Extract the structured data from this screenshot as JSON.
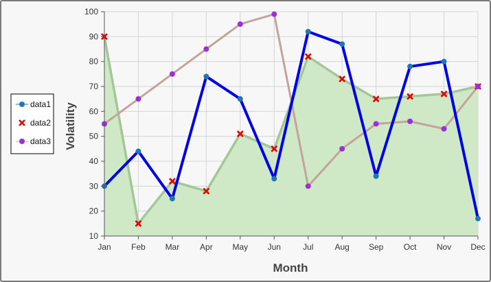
{
  "chart_data": {
    "type": "line",
    "categories": [
      "Jan",
      "Feb",
      "Mar",
      "Apr",
      "May",
      "Jun",
      "Jul",
      "Aug",
      "Sep",
      "Oct",
      "Nov",
      "Dec"
    ],
    "xlabel": "Month",
    "ylabel": "Volatility",
    "ylim": [
      10,
      100
    ],
    "yticks": [
      10,
      20,
      30,
      40,
      50,
      60,
      70,
      80,
      90,
      100
    ],
    "grid": true,
    "legend_position": "left",
    "series": [
      {
        "name": "data1",
        "style": "line",
        "marker": "circle",
        "color": "#0000e6",
        "marker_color": "#1f77b4",
        "values": [
          30,
          44,
          25,
          74,
          65,
          33,
          92,
          87,
          34,
          78,
          80,
          17
        ]
      },
      {
        "name": "data2",
        "style": "area",
        "marker": "x",
        "color": "#a4c79a",
        "fill": "#cfe8c5",
        "marker_color": "#e00000",
        "values": [
          90,
          15,
          32,
          28,
          51,
          45,
          82,
          73,
          65,
          66,
          67,
          70
        ]
      },
      {
        "name": "data3",
        "style": "line",
        "marker": "circle",
        "color": "#c4a49a",
        "marker_color": "#9b30d9",
        "values": [
          55,
          65,
          75,
          85,
          95,
          99,
          30,
          45,
          55,
          56,
          53,
          70
        ]
      }
    ]
  }
}
